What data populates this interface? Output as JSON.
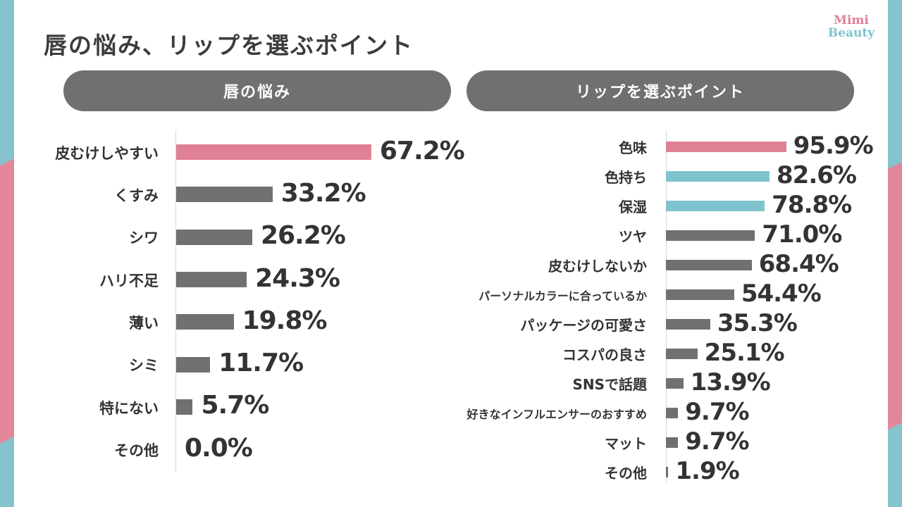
{
  "title": "唇の悩み、リップを選ぶポイント",
  "logo": {
    "line1": "Mimi",
    "line2": "Beauty"
  },
  "colors": {
    "pink": "#e08095",
    "teal": "#7ec4cf",
    "gray": "#707070",
    "decor_teal": "#86c3cd",
    "decor_pink": "#e2879a"
  },
  "chart_data": [
    {
      "type": "bar",
      "orientation": "horizontal",
      "title": "唇の悩み",
      "categories": [
        "皮むけしやすい",
        "くすみ",
        "シワ",
        "ハリ不足",
        "薄い",
        "シミ",
        "特にない",
        "その他"
      ],
      "values": [
        67.2,
        33.2,
        26.2,
        24.3,
        19.8,
        11.7,
        5.7,
        0.0
      ],
      "labels": [
        "67.2%",
        "33.2%",
        "26.2%",
        "24.3%",
        "19.8%",
        "11.7%",
        "5.7%",
        "0.0%"
      ],
      "bar_colors": [
        "pink",
        "gray",
        "gray",
        "gray",
        "gray",
        "gray",
        "gray",
        "gray"
      ],
      "xlim": [
        0,
        100
      ],
      "unit": "%",
      "grid": false
    },
    {
      "type": "bar",
      "orientation": "horizontal",
      "title": "リップを選ぶポイント",
      "categories": [
        "色味",
        "色持ち",
        "保湿",
        "ツヤ",
        "皮むけしないか",
        "パーソナルカラーに合っているか",
        "パッケージの可愛さ",
        "コスパの良さ",
        "SNSで話題",
        "好きなインフルエンサーのおすすめ",
        "マット",
        "その他"
      ],
      "values": [
        95.9,
        82.6,
        78.8,
        71.0,
        68.4,
        54.4,
        35.3,
        25.1,
        13.9,
        9.7,
        9.7,
        1.9
      ],
      "labels": [
        "95.9%",
        "82.6%",
        "78.8%",
        "71.0%",
        "68.4%",
        "54.4%",
        "35.3%",
        "25.1%",
        "13.9%",
        "9.7%",
        "9.7%",
        "1.9%"
      ],
      "bar_colors": [
        "pink",
        "teal",
        "teal",
        "gray",
        "gray",
        "gray",
        "gray",
        "gray",
        "gray",
        "gray",
        "gray",
        "gray"
      ],
      "xlim": [
        0,
        100
      ],
      "unit": "%",
      "grid": false
    }
  ]
}
